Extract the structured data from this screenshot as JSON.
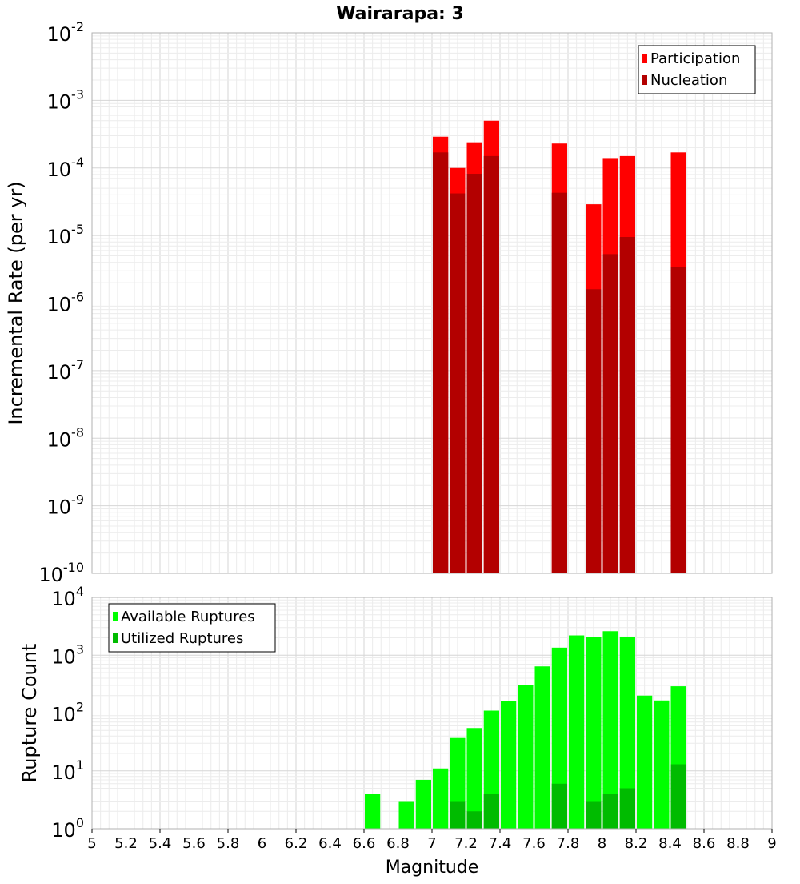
{
  "title": "Wairarapa: 3",
  "chart_data": [
    {
      "type": "bar",
      "title": "Wairarapa: 3",
      "ylabel": "Incremental Rate (per yr)",
      "xlabel": "",
      "yscale": "log",
      "ylim_exponents": [
        -10,
        -2
      ],
      "xlim": [
        5,
        9
      ],
      "grid": true,
      "legend_position": "top-right",
      "series": [
        {
          "name": "Participation",
          "color": "#ff0000",
          "x": [
            7.05,
            7.15,
            7.25,
            7.35,
            7.75,
            7.95,
            8.05,
            8.15,
            8.45
          ],
          "values": [
            0.00029,
            0.0001,
            0.00024,
            0.0005,
            0.00023,
            2.9e-05,
            0.00014,
            0.00015,
            0.00017
          ]
        },
        {
          "name": "Nucleation",
          "color": "#b30000",
          "x": [
            7.05,
            7.15,
            7.25,
            7.35,
            7.75,
            7.95,
            8.05,
            8.15,
            8.45
          ],
          "values": [
            0.00017,
            4.2e-05,
            8.2e-05,
            0.00015,
            4.3e-05,
            1.6e-06,
            5.3e-06,
            9.5e-06,
            3.4e-06
          ]
        }
      ]
    },
    {
      "type": "bar",
      "ylabel": "Rupture Count",
      "xlabel": "Magnitude",
      "yscale": "log",
      "ylim_exponents": [
        0,
        4
      ],
      "xlim": [
        5,
        9
      ],
      "x_ticks": [
        "5",
        "5.2",
        "5.4",
        "5.6",
        "5.8",
        "6",
        "6.2",
        "6.4",
        "6.6",
        "6.8",
        "7",
        "7.2",
        "7.4",
        "7.6",
        "7.8",
        "8",
        "8.2",
        "8.4",
        "8.6",
        "8.8",
        "9"
      ],
      "grid": true,
      "legend_position": "top-left",
      "series": [
        {
          "name": "Available Ruptures",
          "color": "#00ff00",
          "x": [
            6.65,
            6.85,
            6.95,
            7.05,
            7.15,
            7.25,
            7.35,
            7.45,
            7.55,
            7.65,
            7.75,
            7.85,
            7.95,
            8.05,
            8.15,
            8.25,
            8.35,
            8.45,
            8.55
          ],
          "values": [
            4,
            3,
            7,
            11,
            37,
            55,
            110,
            160,
            310,
            640,
            1350,
            2200,
            2050,
            2600,
            2100,
            200,
            165,
            290,
            1
          ]
        },
        {
          "name": "Utilized Ruptures",
          "color": "#00bb00",
          "x": [
            7.05,
            7.15,
            7.25,
            7.35,
            7.75,
            7.95,
            8.05,
            8.15,
            8.45
          ],
          "values": [
            1,
            3,
            2,
            4,
            6,
            3,
            4,
            5,
            13
          ]
        }
      ]
    }
  ]
}
